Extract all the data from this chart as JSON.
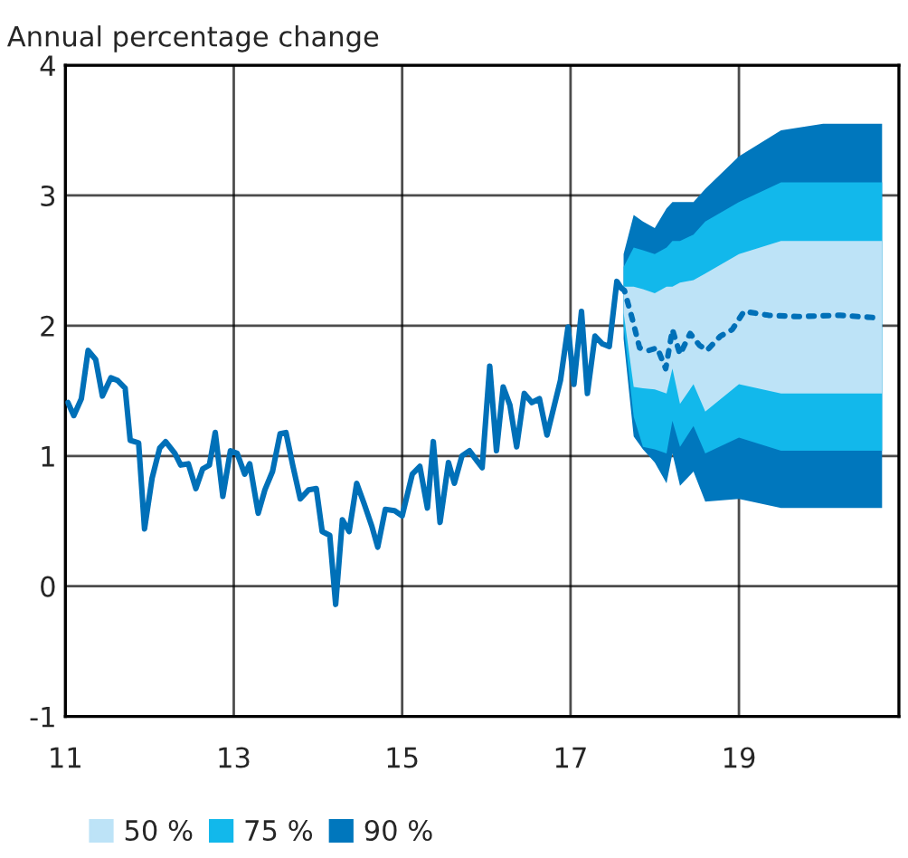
{
  "chart_data": {
    "type": "line",
    "ylabel": "Annual percentage change",
    "xlim": [
      11,
      20.9
    ],
    "xticks": [
      11,
      13,
      15,
      17,
      19
    ],
    "ylim": [
      -1,
      4
    ],
    "yticks": [
      -1,
      0,
      1,
      2,
      3,
      4
    ],
    "grid": true,
    "legend": "bottom left",
    "series": [
      {
        "name": "50 %",
        "color": "#bde3f7",
        "x": [
          17.63,
          17.75,
          17.86,
          18.0,
          18.14,
          18.21,
          18.3,
          18.46,
          18.6,
          19.0,
          19.5,
          20.0,
          20.7
        ],
        "values": [
          null,
          null,
          null,
          null,
          null,
          null,
          null,
          null,
          null,
          null,
          null,
          null,
          null
        ],
        "lower": [
          2.1,
          1.53,
          1.52,
          1.51,
          1.48,
          1.67,
          1.4,
          1.55,
          1.34,
          1.55,
          1.48,
          1.48,
          1.48
        ],
        "upper": [
          2.3,
          2.3,
          2.28,
          2.25,
          2.3,
          2.3,
          2.33,
          2.35,
          2.4,
          2.55,
          2.65,
          2.65,
          2.65
        ]
      },
      {
        "name": "75 %",
        "color": "#12b8eb",
        "x": [
          17.63,
          17.75,
          17.86,
          18.0,
          18.14,
          18.21,
          18.3,
          18.46,
          18.6,
          19.0,
          19.5,
          20.0,
          20.7
        ],
        "values": [
          null,
          null,
          null,
          null,
          null,
          null,
          null,
          null,
          null,
          null,
          null,
          null,
          null
        ],
        "lower": [
          2.0,
          1.3,
          1.07,
          1.05,
          1.02,
          1.27,
          1.07,
          1.23,
          1.02,
          1.14,
          1.04,
          1.04,
          1.04
        ],
        "upper": [
          2.45,
          2.6,
          2.58,
          2.55,
          2.6,
          2.65,
          2.65,
          2.7,
          2.8,
          2.95,
          3.1,
          3.1,
          3.1
        ]
      },
      {
        "name": "90 %",
        "color": "#0077bd",
        "x": [
          17.63,
          17.75,
          17.86,
          18.0,
          18.14,
          18.21,
          18.3,
          18.46,
          18.6,
          19.0,
          19.5,
          20.0,
          20.7
        ],
        "values": [
          null,
          null,
          null,
          null,
          null,
          null,
          null,
          null,
          null,
          null,
          null,
          null,
          null
        ],
        "lower": [
          1.9,
          1.15,
          1.05,
          0.95,
          0.79,
          1.02,
          0.77,
          0.88,
          0.65,
          0.67,
          0.6,
          0.6,
          0.6
        ],
        "upper": [
          2.55,
          2.85,
          2.8,
          2.75,
          2.9,
          2.95,
          2.95,
          2.95,
          3.05,
          3.3,
          3.5,
          3.55,
          3.55
        ]
      },
      {
        "type": "line",
        "color": "#0070b8",
        "line_style": "solid",
        "x": [
          11.03,
          11.1,
          11.19,
          11.27,
          11.36,
          11.44,
          11.54,
          11.62,
          11.71,
          11.77,
          11.87,
          11.94,
          12.03,
          12.12,
          12.19,
          12.3,
          12.37,
          12.46,
          12.55,
          12.63,
          12.71,
          12.78,
          12.87,
          12.96,
          13.04,
          13.13,
          13.19,
          13.29,
          13.37,
          13.46,
          13.55,
          13.62,
          13.7,
          13.79,
          13.89,
          13.98,
          14.05,
          14.14,
          14.21,
          14.29,
          14.37,
          14.46,
          14.55,
          14.64,
          14.71,
          14.8,
          14.91,
          15.0,
          15.12,
          15.21,
          15.3,
          15.37,
          15.45,
          15.55,
          15.62,
          15.71,
          15.8,
          15.88,
          15.95,
          16.04,
          16.12,
          16.2,
          16.28,
          16.36,
          16.45,
          16.54,
          16.63,
          16.72,
          16.8,
          16.88,
          16.97,
          17.04,
          17.13,
          17.2,
          17.29,
          17.38,
          17.46,
          17.55,
          17.6
        ],
        "values": [
          1.41,
          1.31,
          1.44,
          1.81,
          1.74,
          1.46,
          1.6,
          1.58,
          1.52,
          1.12,
          1.1,
          0.44,
          0.83,
          1.06,
          1.11,
          1.02,
          0.93,
          0.94,
          0.75,
          0.9,
          0.93,
          1.18,
          0.69,
          1.04,
          1.02,
          0.86,
          0.94,
          0.56,
          0.74,
          0.88,
          1.17,
          1.18,
          0.93,
          0.67,
          0.74,
          0.75,
          0.42,
          0.39,
          -0.14,
          0.51,
          0.42,
          0.79,
          0.63,
          0.46,
          0.3,
          0.59,
          0.58,
          0.54,
          0.86,
          0.92,
          0.6,
          1.11,
          0.49,
          0.95,
          0.79,
          1.0,
          1.04,
          0.97,
          0.91,
          1.69,
          1.04,
          1.53,
          1.39,
          1.07,
          1.48,
          1.41,
          1.44,
          1.16,
          1.37,
          1.58,
          1.99,
          1.55,
          2.11,
          1.48,
          1.92,
          1.86,
          1.84,
          2.34,
          2.29
        ]
      },
      {
        "type": "line",
        "color": "#0070b8",
        "line_style": "dotted",
        "x": [
          17.6,
          17.64,
          17.73,
          17.82,
          17.93,
          18.03,
          18.13,
          18.21,
          18.3,
          18.42,
          18.53,
          18.62,
          18.78,
          18.92,
          19.06,
          19.35,
          19.7,
          20.2,
          20.65
        ],
        "values": [
          2.29,
          2.27,
          2.06,
          1.83,
          1.81,
          1.83,
          1.67,
          1.97,
          1.78,
          1.94,
          1.85,
          1.81,
          1.92,
          1.97,
          2.11,
          2.08,
          2.07,
          2.08,
          2.06
        ]
      }
    ]
  }
}
